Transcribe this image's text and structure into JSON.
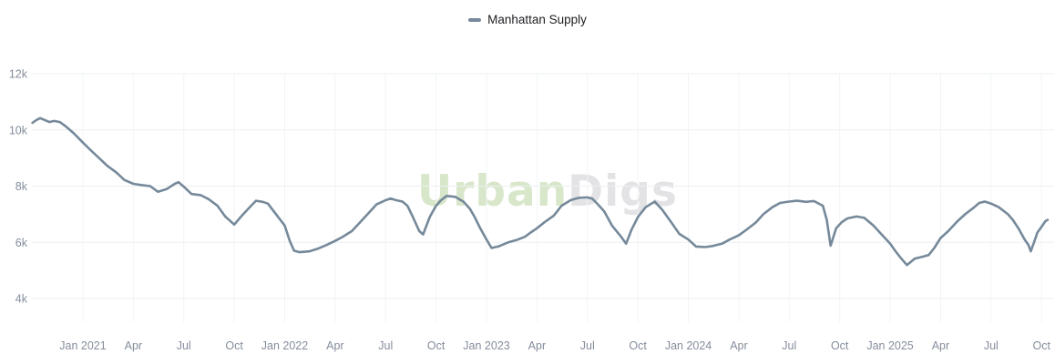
{
  "legend": {
    "label": "Manhattan Supply"
  },
  "watermark": {
    "part1": "Urban",
    "part2": "Digs"
  },
  "colors": {
    "background": "#ffffff",
    "line": "#75899a",
    "legend_marker": "#75899a",
    "legend_text": "#202124",
    "grid_horizontal": "#edeff2",
    "grid_vertical": "#f3f4f6",
    "tick_text": "#858d9b",
    "watermark_green": "#d8e7ca",
    "watermark_gray": "#e3e3e5"
  },
  "chart_data": {
    "type": "line",
    "title": "",
    "legend_position": "top-center",
    "grid": "on",
    "series_name": "Manhattan Supply",
    "value_unit": "listings",
    "ylabel": "",
    "xlabel": "",
    "ylim": [
      4000,
      12000
    ],
    "y_ticks": [
      {
        "label": "12k",
        "value": 12000
      },
      {
        "label": "10k",
        "value": 10000
      },
      {
        "label": "8k",
        "value": 8000
      },
      {
        "label": "6k",
        "value": 6000
      },
      {
        "label": "4k",
        "value": 4000
      }
    ],
    "x_ticks": [
      {
        "label": "Jan 2021",
        "month_index": 3
      },
      {
        "label": "Apr",
        "month_index": 6
      },
      {
        "label": "Jul",
        "month_index": 9
      },
      {
        "label": "Oct",
        "month_index": 12
      },
      {
        "label": "Jan 2022",
        "month_index": 15
      },
      {
        "label": "Apr",
        "month_index": 18
      },
      {
        "label": "Jul",
        "month_index": 21
      },
      {
        "label": "Oct",
        "month_index": 24
      },
      {
        "label": "Jan 2023",
        "month_index": 27
      },
      {
        "label": "Apr",
        "month_index": 30
      },
      {
        "label": "Jul",
        "month_index": 33
      },
      {
        "label": "Oct",
        "month_index": 36
      },
      {
        "label": "Jan 2024",
        "month_index": 39
      },
      {
        "label": "Apr",
        "month_index": 42
      },
      {
        "label": "Jul",
        "month_index": 45
      },
      {
        "label": "Oct",
        "month_index": 48
      },
      {
        "label": "Jan 2025",
        "month_index": 51
      },
      {
        "label": "Apr",
        "month_index": 54
      },
      {
        "label": "Jul",
        "month_index": 57
      },
      {
        "label": "Oct",
        "month_index": 60
      }
    ],
    "x_range": [
      "2020-10-01",
      "2025-10-12"
    ],
    "points": [
      [
        "2020-10-01",
        10250
      ],
      [
        "2020-10-08",
        10350
      ],
      [
        "2020-10-15",
        10420
      ],
      [
        "2020-10-22",
        10360
      ],
      [
        "2020-11-01",
        10280
      ],
      [
        "2020-11-10",
        10320
      ],
      [
        "2020-11-20",
        10280
      ],
      [
        "2020-12-01",
        10120
      ],
      [
        "2020-12-15",
        9880
      ],
      [
        "2021-01-01",
        9550
      ],
      [
        "2021-01-15",
        9280
      ],
      [
        "2021-02-01",
        8980
      ],
      [
        "2021-02-15",
        8720
      ],
      [
        "2021-03-01",
        8480
      ],
      [
        "2021-03-15",
        8220
      ],
      [
        "2021-04-01",
        8080
      ],
      [
        "2021-04-15",
        8040
      ],
      [
        "2021-05-01",
        8000
      ],
      [
        "2021-05-15",
        7800
      ],
      [
        "2021-06-01",
        7900
      ],
      [
        "2021-06-15",
        8080
      ],
      [
        "2021-06-22",
        8140
      ],
      [
        "2021-07-01",
        7980
      ],
      [
        "2021-07-15",
        7720
      ],
      [
        "2021-08-01",
        7680
      ],
      [
        "2021-08-15",
        7540
      ],
      [
        "2021-09-01",
        7300
      ],
      [
        "2021-09-15",
        6920
      ],
      [
        "2021-10-01",
        6630
      ],
      [
        "2021-10-15",
        6950
      ],
      [
        "2021-11-01",
        7300
      ],
      [
        "2021-11-10",
        7480
      ],
      [
        "2021-11-22",
        7440
      ],
      [
        "2021-12-01",
        7380
      ],
      [
        "2021-12-15",
        7020
      ],
      [
        "2022-01-01",
        6600
      ],
      [
        "2022-01-10",
        6050
      ],
      [
        "2022-01-18",
        5700
      ],
      [
        "2022-01-28",
        5650
      ],
      [
        "2022-02-15",
        5680
      ],
      [
        "2022-03-01",
        5780
      ],
      [
        "2022-03-15",
        5900
      ],
      [
        "2022-04-01",
        6050
      ],
      [
        "2022-04-15",
        6200
      ],
      [
        "2022-05-01",
        6400
      ],
      [
        "2022-05-15",
        6700
      ],
      [
        "2022-06-01",
        7050
      ],
      [
        "2022-06-15",
        7350
      ],
      [
        "2022-07-01",
        7500
      ],
      [
        "2022-07-10",
        7560
      ],
      [
        "2022-07-20",
        7500
      ],
      [
        "2022-08-01",
        7450
      ],
      [
        "2022-08-10",
        7300
      ],
      [
        "2022-08-20",
        6900
      ],
      [
        "2022-09-01",
        6400
      ],
      [
        "2022-09-08",
        6280
      ],
      [
        "2022-09-20",
        6900
      ],
      [
        "2022-10-01",
        7300
      ],
      [
        "2022-10-10",
        7500
      ],
      [
        "2022-10-20",
        7650
      ],
      [
        "2022-11-05",
        7620
      ],
      [
        "2022-11-20",
        7450
      ],
      [
        "2022-12-01",
        7200
      ],
      [
        "2022-12-10",
        6900
      ],
      [
        "2022-12-20",
        6500
      ],
      [
        "2023-01-01",
        6100
      ],
      [
        "2023-01-10",
        5800
      ],
      [
        "2023-01-22",
        5850
      ],
      [
        "2023-02-10",
        6000
      ],
      [
        "2023-02-25",
        6080
      ],
      [
        "2023-03-10",
        6200
      ],
      [
        "2023-03-20",
        6350
      ],
      [
        "2023-04-01",
        6500
      ],
      [
        "2023-04-15",
        6720
      ],
      [
        "2023-05-01",
        6950
      ],
      [
        "2023-05-15",
        7300
      ],
      [
        "2023-06-01",
        7500
      ],
      [
        "2023-06-15",
        7580
      ],
      [
        "2023-07-01",
        7600
      ],
      [
        "2023-07-10",
        7550
      ],
      [
        "2023-07-20",
        7350
      ],
      [
        "2023-08-01",
        7100
      ],
      [
        "2023-08-15",
        6600
      ],
      [
        "2023-09-01",
        6200
      ],
      [
        "2023-09-10",
        5950
      ],
      [
        "2023-09-20",
        6450
      ],
      [
        "2023-10-01",
        6900
      ],
      [
        "2023-10-15",
        7250
      ],
      [
        "2023-11-01",
        7450
      ],
      [
        "2023-11-15",
        7150
      ],
      [
        "2023-12-01",
        6700
      ],
      [
        "2023-12-15",
        6300
      ],
      [
        "2024-01-01",
        6100
      ],
      [
        "2024-01-15",
        5850
      ],
      [
        "2024-02-01",
        5830
      ],
      [
        "2024-02-15",
        5870
      ],
      [
        "2024-03-01",
        5950
      ],
      [
        "2024-03-15",
        6100
      ],
      [
        "2024-04-01",
        6250
      ],
      [
        "2024-04-15",
        6450
      ],
      [
        "2024-05-01",
        6700
      ],
      [
        "2024-05-15",
        7000
      ],
      [
        "2024-06-01",
        7250
      ],
      [
        "2024-06-15",
        7400
      ],
      [
        "2024-07-01",
        7450
      ],
      [
        "2024-07-15",
        7480
      ],
      [
        "2024-08-01",
        7440
      ],
      [
        "2024-08-15",
        7470
      ],
      [
        "2024-09-01",
        7300
      ],
      [
        "2024-09-08",
        6800
      ],
      [
        "2024-09-15",
        5880
      ],
      [
        "2024-09-25",
        6500
      ],
      [
        "2024-10-05",
        6720
      ],
      [
        "2024-10-15",
        6850
      ],
      [
        "2024-11-01",
        6920
      ],
      [
        "2024-11-15",
        6870
      ],
      [
        "2024-12-01",
        6600
      ],
      [
        "2024-12-15",
        6300
      ],
      [
        "2025-01-01",
        5950
      ],
      [
        "2025-01-10",
        5700
      ],
      [
        "2025-01-20",
        5450
      ],
      [
        "2025-02-01",
        5190
      ],
      [
        "2025-02-15",
        5420
      ],
      [
        "2025-03-01",
        5500
      ],
      [
        "2025-03-10",
        5550
      ],
      [
        "2025-03-20",
        5800
      ],
      [
        "2025-04-01",
        6150
      ],
      [
        "2025-04-15",
        6400
      ],
      [
        "2025-05-01",
        6750
      ],
      [
        "2025-05-15",
        7000
      ],
      [
        "2025-06-01",
        7250
      ],
      [
        "2025-06-10",
        7400
      ],
      [
        "2025-06-20",
        7450
      ],
      [
        "2025-07-01",
        7380
      ],
      [
        "2025-07-15",
        7250
      ],
      [
        "2025-08-01",
        7000
      ],
      [
        "2025-08-10",
        6800
      ],
      [
        "2025-08-20",
        6500
      ],
      [
        "2025-09-01",
        6100
      ],
      [
        "2025-09-08",
        5900
      ],
      [
        "2025-09-12",
        5680
      ],
      [
        "2025-09-18",
        6000
      ],
      [
        "2025-09-24",
        6350
      ],
      [
        "2025-10-01",
        6550
      ],
      [
        "2025-10-08",
        6750
      ],
      [
        "2025-10-12",
        6800
      ]
    ]
  }
}
